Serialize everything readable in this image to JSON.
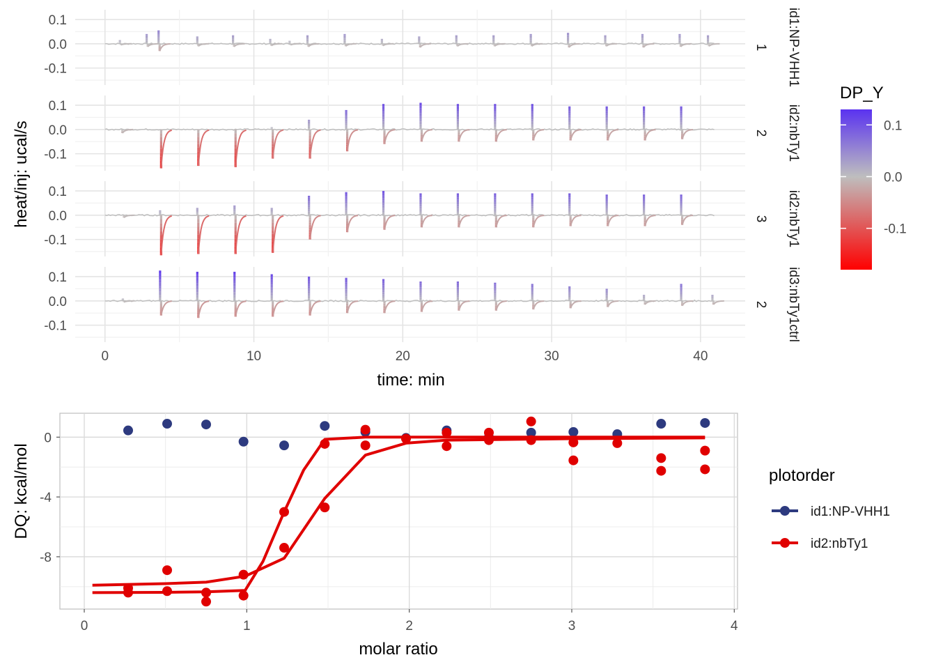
{
  "chart_data": [
    {
      "type": "line",
      "xlabel": "time: min",
      "ylabel": "heat/inj: ucal/s",
      "xlim": [
        -2,
        43
      ],
      "ylim": [
        -0.17,
        0.14
      ],
      "x_ticks": [
        0,
        10,
        20,
        30,
        40
      ],
      "x_tick_labels": [
        "0",
        "10",
        "20",
        "30",
        "40"
      ],
      "y_ticks": [
        0.1,
        0.0,
        -0.1
      ],
      "y_tick_labels": [
        "0.1",
        "0.0",
        "-0.1"
      ],
      "color_scale": {
        "title": "DP_Y",
        "low_color": "#ff0000",
        "mid_color": "#bebebe",
        "high_color": "#5a32f0",
        "range": [
          -0.18,
          0.13
        ],
        "tick_values": [
          0.1,
          0.0,
          -0.1
        ],
        "tick_labels": [
          "0.1",
          "0.0",
          "-0.1"
        ]
      },
      "panels": [
        {
          "strip_top": "id1:NP-VHH1",
          "strip_bottom": "1",
          "peaks": [
            {
              "t": 1.0,
              "up": 0.015,
              "down": -0.005
            },
            {
              "t": 2.8,
              "up": 0.04,
              "down": -0.012
            },
            {
              "t": 3.6,
              "up": 0.055,
              "down": -0.03
            },
            {
              "t": 6.2,
              "up": 0.03,
              "down": -0.01
            },
            {
              "t": 8.6,
              "up": 0.035,
              "down": -0.012
            },
            {
              "t": 11.1,
              "up": 0.02,
              "down": -0.008
            },
            {
              "t": 12.4,
              "up": 0.012,
              "down": -0.005
            },
            {
              "t": 13.6,
              "up": 0.035,
              "down": -0.012
            },
            {
              "t": 16.1,
              "up": 0.04,
              "down": -0.01
            },
            {
              "t": 18.6,
              "up": 0.02,
              "down": -0.008
            },
            {
              "t": 21.1,
              "up": 0.03,
              "down": -0.015
            },
            {
              "t": 23.6,
              "up": 0.035,
              "down": -0.01
            },
            {
              "t": 26.1,
              "up": 0.035,
              "down": -0.01
            },
            {
              "t": 28.6,
              "up": 0.04,
              "down": -0.01
            },
            {
              "t": 31.1,
              "up": 0.045,
              "down": -0.015
            },
            {
              "t": 33.6,
              "up": 0.035,
              "down": -0.01
            },
            {
              "t": 36.1,
              "up": 0.04,
              "down": -0.015
            },
            {
              "t": 38.6,
              "up": 0.04,
              "down": -0.012
            },
            {
              "t": 40.5,
              "up": 0.035,
              "down": -0.01
            }
          ]
        },
        {
          "strip_top": "id2:nbTy1",
          "strip_bottom": "2",
          "peaks": [
            {
              "t": 1.1,
              "up": 0.0,
              "down": -0.015
            },
            {
              "t": 3.7,
              "up": 0.0,
              "down": -0.16
            },
            {
              "t": 6.2,
              "up": 0.0,
              "down": -0.15
            },
            {
              "t": 8.7,
              "up": 0.0,
              "down": -0.155
            },
            {
              "t": 11.2,
              "up": 0.01,
              "down": -0.12
            },
            {
              "t": 13.7,
              "up": 0.04,
              "down": -0.12
            },
            {
              "t": 16.2,
              "up": 0.08,
              "down": -0.09
            },
            {
              "t": 18.7,
              "up": 0.105,
              "down": -0.06
            },
            {
              "t": 21.2,
              "up": 0.11,
              "down": -0.05
            },
            {
              "t": 23.7,
              "up": 0.105,
              "down": -0.05
            },
            {
              "t": 26.2,
              "up": 0.105,
              "down": -0.05
            },
            {
              "t": 28.7,
              "up": 0.105,
              "down": -0.045
            },
            {
              "t": 31.2,
              "up": 0.095,
              "down": -0.045
            },
            {
              "t": 33.7,
              "up": 0.095,
              "down": -0.045
            },
            {
              "t": 36.2,
              "up": 0.095,
              "down": -0.045
            },
            {
              "t": 38.7,
              "up": 0.095,
              "down": -0.04
            }
          ]
        },
        {
          "strip_top": "id2:nbTy1",
          "strip_bottom": "3",
          "peaks": [
            {
              "t": 1.2,
              "up": 0.0,
              "down": -0.01
            },
            {
              "t": 3.7,
              "up": 0.02,
              "down": -0.165
            },
            {
              "t": 6.2,
              "up": 0.03,
              "down": -0.16
            },
            {
              "t": 8.7,
              "up": 0.04,
              "down": -0.16
            },
            {
              "t": 11.2,
              "up": 0.03,
              "down": -0.155
            },
            {
              "t": 13.7,
              "up": 0.08,
              "down": -0.1
            },
            {
              "t": 16.2,
              "up": 0.095,
              "down": -0.07
            },
            {
              "t": 18.7,
              "up": 0.1,
              "down": -0.06
            },
            {
              "t": 21.2,
              "up": 0.09,
              "down": -0.05
            },
            {
              "t": 23.7,
              "up": 0.09,
              "down": -0.05
            },
            {
              "t": 26.2,
              "up": 0.09,
              "down": -0.05
            },
            {
              "t": 28.7,
              "up": 0.09,
              "down": -0.05
            },
            {
              "t": 31.2,
              "up": 0.09,
              "down": -0.045
            },
            {
              "t": 33.7,
              "up": 0.085,
              "down": -0.045
            },
            {
              "t": 36.2,
              "up": 0.085,
              "down": -0.045
            },
            {
              "t": 38.7,
              "up": 0.085,
              "down": -0.04
            }
          ]
        },
        {
          "strip_top": "id3:nbTy1ctrl",
          "strip_bottom": "2",
          "peaks": [
            {
              "t": 1.2,
              "up": 0.01,
              "down": -0.005
            },
            {
              "t": 3.7,
              "up": 0.125,
              "down": -0.06
            },
            {
              "t": 6.2,
              "up": 0.12,
              "down": -0.07
            },
            {
              "t": 8.7,
              "up": 0.12,
              "down": -0.065
            },
            {
              "t": 11.2,
              "up": 0.11,
              "down": -0.065
            },
            {
              "t": 13.7,
              "up": 0.1,
              "down": -0.06
            },
            {
              "t": 16.2,
              "up": 0.095,
              "down": -0.05
            },
            {
              "t": 18.7,
              "up": 0.09,
              "down": -0.05
            },
            {
              "t": 21.2,
              "up": 0.08,
              "down": -0.045
            },
            {
              "t": 23.7,
              "up": 0.08,
              "down": -0.04
            },
            {
              "t": 26.2,
              "up": 0.075,
              "down": -0.04
            },
            {
              "t": 28.7,
              "up": 0.07,
              "down": -0.035
            },
            {
              "t": 31.2,
              "up": 0.06,
              "down": -0.03
            },
            {
              "t": 33.7,
              "up": 0.05,
              "down": -0.025
            },
            {
              "t": 36.2,
              "up": 0.025,
              "down": -0.015
            },
            {
              "t": 38.7,
              "up": 0.07,
              "down": -0.02
            },
            {
              "t": 40.8,
              "up": 0.025,
              "down": -0.015
            }
          ]
        }
      ]
    },
    {
      "type": "scatter",
      "xlabel": "molar ratio",
      "ylabel": "DQ: kcal/mol",
      "xlim": [
        -0.15,
        4.02
      ],
      "ylim": [
        -11.5,
        1.6
      ],
      "x_ticks": [
        0,
        1,
        2,
        3,
        4
      ],
      "x_tick_labels": [
        "0",
        "1",
        "2",
        "3",
        "4"
      ],
      "y_ticks": [
        0,
        -4,
        -8
      ],
      "y_tick_labels": [
        "0",
        "-4",
        "-8"
      ],
      "legend": {
        "title": "plotorder",
        "position": "right"
      },
      "series": [
        {
          "name": "id1:NP-VHH1",
          "color": "#2d3a7f",
          "points": [
            [
              0.27,
              0.45
            ],
            [
              0.51,
              0.9
            ],
            [
              0.75,
              0.85
            ],
            [
              0.98,
              -0.3
            ],
            [
              1.23,
              -0.55
            ],
            [
              1.48,
              0.75
            ],
            [
              1.73,
              0.35
            ],
            [
              1.98,
              -0.05
            ],
            [
              2.23,
              0.45
            ],
            [
              2.49,
              0.0
            ],
            [
              2.75,
              0.3
            ],
            [
              3.01,
              0.35
            ],
            [
              3.28,
              0.2
            ],
            [
              3.55,
              0.9
            ],
            [
              3.82,
              0.95
            ]
          ],
          "fit": []
        },
        {
          "name": "id2:nbTy1",
          "color": "#e00000",
          "points": [
            [
              0.27,
              -10.1
            ],
            [
              0.27,
              -10.4
            ],
            [
              0.51,
              -8.9
            ],
            [
              0.51,
              -10.3
            ],
            [
              0.75,
              -10.4
            ],
            [
              0.75,
              -11.0
            ],
            [
              0.98,
              -9.2
            ],
            [
              0.98,
              -10.6
            ],
            [
              1.23,
              -5.0
            ],
            [
              1.23,
              -7.4
            ],
            [
              1.48,
              -0.45
            ],
            [
              1.48,
              -4.7
            ],
            [
              1.73,
              0.5
            ],
            [
              1.73,
              -0.55
            ],
            [
              1.98,
              -0.1
            ],
            [
              2.23,
              0.3
            ],
            [
              2.23,
              -0.6
            ],
            [
              2.49,
              0.3
            ],
            [
              2.49,
              -0.2
            ],
            [
              2.75,
              1.05
            ],
            [
              2.75,
              -0.2
            ],
            [
              3.01,
              -0.35
            ],
            [
              3.01,
              -1.55
            ],
            [
              3.28,
              -0.4
            ],
            [
              3.55,
              -1.4
            ],
            [
              3.55,
              -2.25
            ],
            [
              3.82,
              -0.9
            ],
            [
              3.82,
              -2.15
            ]
          ],
          "fit": [
            [
              [
                0.05,
                -10.4
              ],
              [
                0.5,
                -10.38
              ],
              [
                0.75,
                -10.35
              ],
              [
                0.99,
                -10.25
              ],
              [
                1.1,
                -8.3
              ],
              [
                1.23,
                -5.0
              ],
              [
                1.35,
                -2.2
              ],
              [
                1.48,
                -0.15
              ],
              [
                1.73,
                0.0
              ],
              [
                2.0,
                0.0
              ],
              [
                3.0,
                0.0
              ],
              [
                3.82,
                0.0
              ]
            ],
            [
              [
                0.05,
                -9.9
              ],
              [
                0.5,
                -9.8
              ],
              [
                0.75,
                -9.7
              ],
              [
                0.99,
                -9.3
              ],
              [
                1.23,
                -8.1
              ],
              [
                1.48,
                -4.1
              ],
              [
                1.73,
                -1.2
              ],
              [
                1.98,
                -0.4
              ],
              [
                2.23,
                -0.2
              ],
              [
                3.0,
                -0.1
              ],
              [
                3.82,
                -0.05
              ]
            ]
          ]
        }
      ]
    }
  ]
}
